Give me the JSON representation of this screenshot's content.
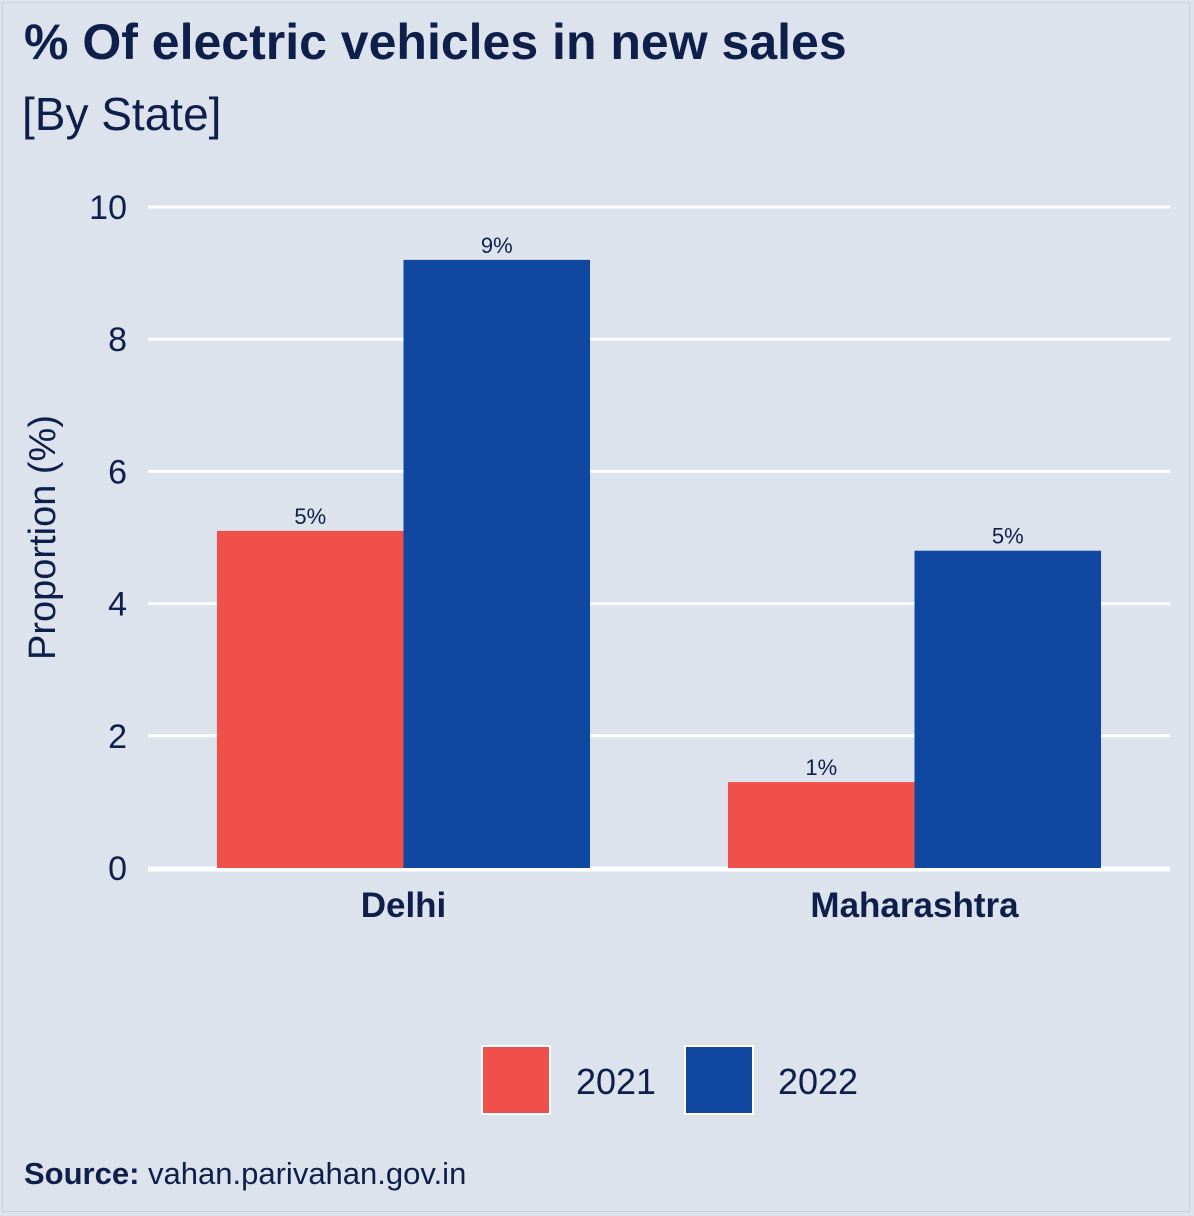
{
  "title": "% Of electric vehicles in new sales",
  "subtitle": "[By State]",
  "source": {
    "label": "Source:",
    "text": "vahan.parivahan.gov.in"
  },
  "colors": {
    "background": "#dce3ec",
    "grid": "#ffffff",
    "text": "#0f1f4b",
    "series_2021": "#f0504a",
    "series_2022": "#0f47a1"
  },
  "chart_data": {
    "type": "bar",
    "title": "% Of electric vehicles in new sales",
    "subtitle": "[By State]",
    "xlabel": "",
    "ylabel": "Proportion (%)",
    "ylim": [
      0,
      10
    ],
    "yticks": [
      "0",
      "2",
      "4",
      "6",
      "8",
      "10"
    ],
    "grid": true,
    "legend": "bottom",
    "categories": [
      "Delhi",
      "Maharashtra"
    ],
    "series": [
      {
        "name": "2021",
        "color": "#f0504a",
        "values": [
          5.1,
          1.3
        ],
        "labels": [
          "5%",
          "1%"
        ]
      },
      {
        "name": "2022",
        "color": "#0f47a1",
        "values": [
          9.2,
          4.8
        ],
        "labels": [
          "9%",
          "5%"
        ]
      }
    ]
  }
}
